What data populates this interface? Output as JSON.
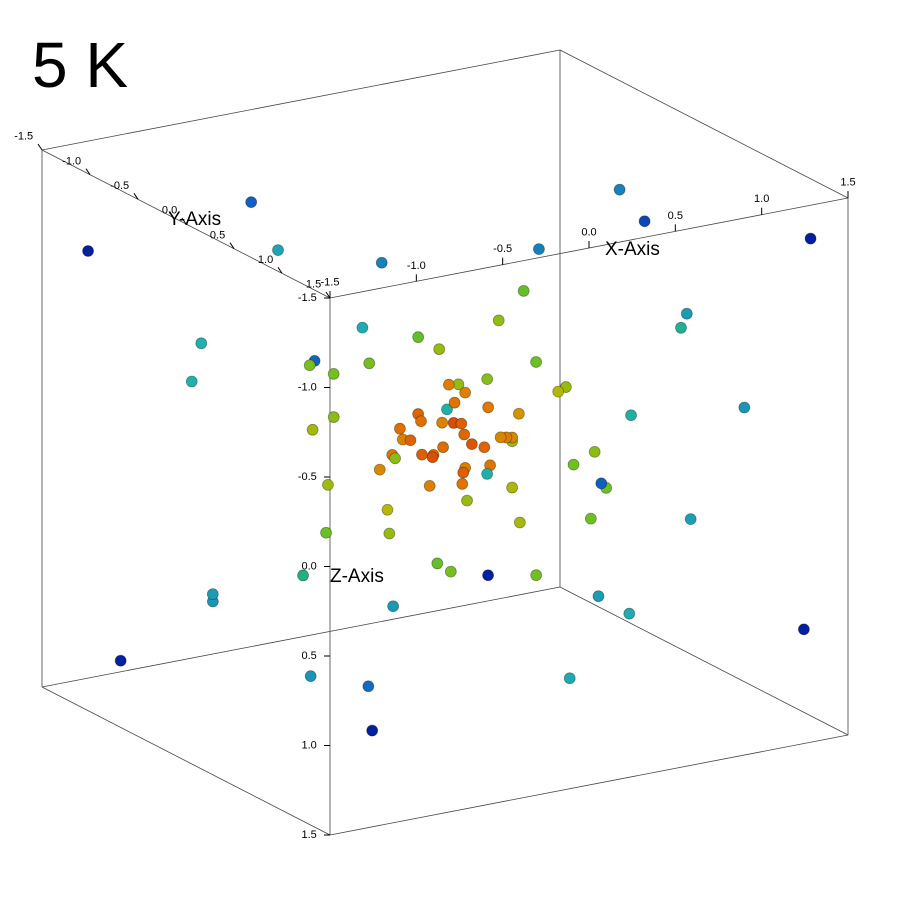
{
  "chart_data": {
    "type": "scatter3d",
    "title": "5 K",
    "x_label": "X-Axis",
    "y_label": "Y-Axis",
    "z_label": "Z-Axis",
    "xlim": [
      -1.5,
      1.5
    ],
    "ylim": [
      -1.5,
      1.5
    ],
    "zlim": [
      -1.5,
      1.5
    ],
    "xticks": [
      -1.5,
      {
        "value": -1,
        "label": "-1.0"
      },
      -0.5,
      {
        "value": 0,
        "label": "0.0"
      },
      0.5,
      {
        "value": 1,
        "label": "1.0"
      },
      1.5
    ],
    "yticks": [
      -1.5,
      {
        "value": -1,
        "label": "-1.0"
      },
      -0.5,
      {
        "value": 0,
        "label": "0.0"
      },
      0.5,
      {
        "value": 1,
        "label": "1.0"
      },
      1.5
    ],
    "zticks": [
      -1.5,
      {
        "value": -1,
        "label": "-1.0"
      },
      -0.5,
      {
        "value": 0,
        "label": "0.0"
      },
      0.5,
      {
        "value": 1,
        "label": "1.0"
      },
      1.5
    ],
    "colormap": [
      "#d83000",
      "#e07800",
      "#c8b400",
      "#70c020",
      "#20b060",
      "#20b0b0",
      "#1060c0",
      "#0020a0"
    ],
    "points": [
      [
        0.05,
        0,
        -0.1
      ],
      [
        0.1,
        0.1,
        0
      ],
      [
        -0.1,
        0.05,
        0.05
      ],
      [
        0.15,
        -0.1,
        -0.05
      ],
      [
        -0.05,
        -0.15,
        0.1
      ],
      [
        0.2,
        0.05,
        0.05
      ],
      [
        -0.2,
        0,
        -0.05
      ],
      [
        0,
        0.2,
        -0.1
      ],
      [
        0.1,
        -0.2,
        0.1
      ],
      [
        -0.15,
        0.15,
        0
      ],
      [
        0.25,
        0,
        -0.15
      ],
      [
        0.05,
        0.1,
        0.15
      ],
      [
        -0.1,
        -0.1,
        -0.15
      ],
      [
        0.3,
        0.1,
        0
      ],
      [
        -0.25,
        -0.1,
        0.05
      ],
      [
        0.15,
        0.2,
        0.1
      ],
      [
        0,
        -0.25,
        -0.05
      ],
      [
        -0.05,
        0.3,
        0.05
      ],
      [
        0.2,
        -0.15,
        -0.2
      ],
      [
        0.35,
        -0.05,
        0.05
      ],
      [
        -0.3,
        0.1,
        -0.1
      ],
      [
        0.1,
        0,
        0.25
      ],
      [
        -0.15,
        -0.2,
        -0.05
      ],
      [
        0.25,
        0.25,
        -0.05
      ],
      [
        0.05,
        -0.05,
        -0.3
      ],
      [
        -0.2,
        0.2,
        0.15
      ],
      [
        0.4,
        0.05,
        -0.1
      ],
      [
        -0.35,
        -0.05,
        0.1
      ],
      [
        0.15,
        -0.3,
        0
      ],
      [
        0,
        0.1,
        -0.25
      ],
      [
        0.6,
        0.1,
        -0.2
      ],
      [
        -0.5,
        0.3,
        0.2
      ],
      [
        0.3,
        -0.6,
        -0.3
      ],
      [
        -0.2,
        0.5,
        -0.5
      ],
      [
        0.5,
        -0.2,
        0.4
      ],
      [
        -0.6,
        -0.3,
        -0.1
      ],
      [
        0.1,
        0.6,
        0.3
      ],
      [
        0.7,
        0.3,
        0.1
      ],
      [
        -0.4,
        -0.5,
        0.3
      ],
      [
        0.2,
        0.2,
        -0.7
      ],
      [
        -0.1,
        -0.4,
        0.6
      ],
      [
        0.45,
        0.45,
        -0.35
      ],
      [
        -0.7,
        0.1,
        -0.3
      ],
      [
        0.35,
        -0.4,
        0.5
      ],
      [
        0,
        0.7,
        -0.2
      ],
      [
        0.8,
        -0.1,
        0.3
      ],
      [
        -0.3,
        0.6,
        0.5
      ],
      [
        0.55,
        -0.55,
        -0.1
      ],
      [
        -0.55,
        0.2,
        -0.6
      ],
      [
        0.1,
        -0.7,
        0.3
      ],
      [
        0.65,
        0.35,
        0.45
      ],
      [
        -0.45,
        -0.6,
        -0.35
      ],
      [
        0.25,
        0.5,
        0.65
      ],
      [
        0.75,
        -0.4,
        -0.2
      ],
      [
        -0.8,
        0.2,
        0.3
      ],
      [
        0.4,
        0.1,
        -0.8
      ],
      [
        -0.2,
        -0.8,
        -0.2
      ],
      [
        0.6,
        0.6,
        0.2
      ],
      [
        -0.35,
        0.35,
        -0.75
      ],
      [
        0.15,
        -0.35,
        0.8
      ],
      [
        1.2,
        0.3,
        -0.5
      ],
      [
        -1.1,
        0.5,
        0.4
      ],
      [
        0.8,
        -1.0,
        0.6
      ],
      [
        -0.6,
        1.1,
        -0.6
      ],
      [
        1.3,
        -0.4,
        0.2
      ],
      [
        -1.3,
        -0.3,
        -0.5
      ],
      [
        0.4,
        1.2,
        0.7
      ],
      [
        0.9,
        0.9,
        -0.8
      ],
      [
        -0.9,
        -0.8,
        0.9
      ],
      [
        1.0,
        -0.2,
        1.1
      ],
      [
        -0.3,
        -1.2,
        -0.8
      ],
      [
        0.5,
        0.4,
        1.3
      ],
      [
        -1.0,
        1.0,
        0.9
      ],
      [
        1.4,
        0.6,
        -0.1
      ],
      [
        -0.8,
        -1.1,
        -0.4
      ],
      [
        0.2,
        -0.9,
        1.2
      ],
      [
        1.1,
        -1.0,
        -0.6
      ],
      [
        -1.2,
        0.8,
        -0.9
      ],
      [
        0.7,
        1.3,
        0.2
      ],
      [
        -0.5,
        -0.5,
        1.35
      ],
      [
        1.35,
        -0.8,
        0.7
      ],
      [
        -1.4,
        0.1,
        0.6
      ],
      [
        0.3,
        -1.4,
        -0.2
      ],
      [
        0.9,
        0.2,
        -1.3
      ],
      [
        -0.7,
        0.6,
        -1.3
      ],
      [
        1.45,
        1.2,
        -1.2
      ],
      [
        -1.2,
        1.4,
        1.0
      ],
      [
        1.0,
        -1.35,
        1.3
      ],
      [
        -1.4,
        -1.2,
        -1.0
      ],
      [
        0.6,
        1.0,
        -1.4
      ],
      [
        -0.9,
        -0.4,
        -1.4
      ],
      [
        1.3,
        1.4,
        0.9
      ],
      [
        -1.1,
        -1.4,
        1.4
      ]
    ]
  }
}
